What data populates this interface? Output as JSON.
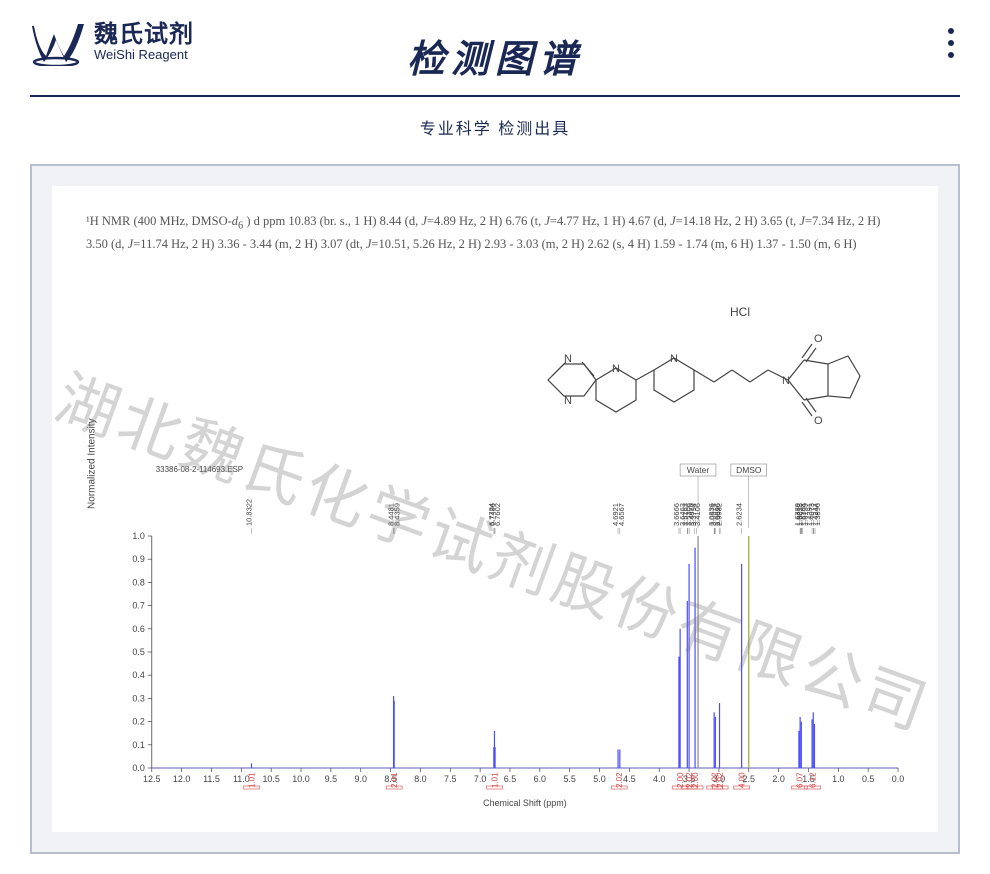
{
  "header": {
    "logo_cn": "魏氏试剂",
    "logo_en": "WeiShi Reagent",
    "title": "检测图谱",
    "subtitle": "专业科学 检测出具"
  },
  "nmr_description": {
    "line1_prefix": "¹H NMR (400 MHz, DMSO-",
    "line1_solvent_i": "d",
    "line1_sub": "6",
    "line1_rest": " ) d ppm 10.83 (br. s., 1 H) 8.44 (d, ",
    "line1_b": "J",
    "line1_c": "=4.89 Hz, 2 H) 6.76 (t, ",
    "line1_d": "J",
    "line1_e": "=4.77 Hz, 1 H) 4.67 (d, ",
    "line1_f": "J",
    "line1_g": "=14.18 Hz, 2 H) 3.65 (t, ",
    "line1_h": "J",
    "line1_i": "=7.34 Hz, 2 H)",
    "line2_a": "3.50 (d, ",
    "line2_b": "J",
    "line2_c": "=11.74 Hz, 2 H) 3.36 - 3.44 (m, 2 H) 3.07 (dt, ",
    "line2_d": "J",
    "line2_e": "=10.51, 5.26 Hz, 2 H) 2.93 - 3.03 (m, 2 H) 2.62 (s, 4 H) 1.59 - 1.74 (m, 6 H) 1.37 - 1.50 (m, 6 H)"
  },
  "structure_labels": {
    "hcl": "HCl",
    "n": "N",
    "o": "O"
  },
  "plot": {
    "esp_label": "33386-08-2-114693.ESP",
    "x_axis_title": "Chemical Shift (ppm)",
    "y_axis_title": "Normalized Intensity",
    "x_min": 0,
    "x_max": 12.5,
    "x_tick_step": 0.5,
    "y_min": 0,
    "y_max": 1.0,
    "y_tick_step": 0.1,
    "background_color": "#ffffff",
    "axis_color": "#444444",
    "peak_color": "#4a4aff",
    "water_line_color": "#888888",
    "dmso_line_color": "#9aa92e",
    "integration_color": "#d94545",
    "solvent_boxes": [
      {
        "label": "Water",
        "ppm": 3.35
      },
      {
        "label": "DMSO",
        "ppm": 2.5
      }
    ],
    "peak_labels": [
      {
        "ppm": 10.83,
        "text": "10.8322"
      },
      {
        "ppm": 8.45,
        "text": "8.4481"
      },
      {
        "ppm": 8.44,
        "text": "8.4359"
      },
      {
        "ppm": 6.77,
        "text": "6.7724"
      },
      {
        "ppm": 6.76,
        "text": "6.7602"
      },
      {
        "ppm": 6.75,
        "text": "6.7496"
      },
      {
        "ppm": 4.69,
        "text": "4.6921"
      },
      {
        "ppm": 4.66,
        "text": "4.6567"
      },
      {
        "ppm": 3.67,
        "text": "3.6666"
      },
      {
        "ppm": 3.65,
        "text": "3.6463"
      },
      {
        "ppm": 3.53,
        "text": "3.5306"
      },
      {
        "ppm": 3.52,
        "text": "3.5163"
      },
      {
        "ppm": 3.49,
        "text": "3.4870"
      },
      {
        "ppm": 3.41,
        "text": "3.4106"
      },
      {
        "ppm": 3.38,
        "text": "3.3794"
      },
      {
        "ppm": 3.08,
        "text": "3.0836"
      },
      {
        "ppm": 3.07,
        "text": "3.0696"
      },
      {
        "ppm": 3.06,
        "text": "3.0574"
      },
      {
        "ppm": 2.99,
        "text": "2.9932"
      },
      {
        "ppm": 2.98,
        "text": "2.9826"
      },
      {
        "ppm": 2.62,
        "text": "2.6234"
      },
      {
        "ppm": 1.64,
        "text": "1.6389"
      },
      {
        "ppm": 1.63,
        "text": "1.6304"
      },
      {
        "ppm": 1.62,
        "text": "1.6212"
      },
      {
        "ppm": 1.61,
        "text": "1.6139"
      },
      {
        "ppm": 1.6,
        "text": "1.6035"
      },
      {
        "ppm": 1.44,
        "text": "1.4391"
      },
      {
        "ppm": 1.42,
        "text": "1.4244"
      },
      {
        "ppm": 1.41,
        "text": "1.4073"
      },
      {
        "ppm": 1.39,
        "text": "1.3896"
      }
    ],
    "integrations": [
      {
        "ppm": 10.83,
        "value": "1.01"
      },
      {
        "ppm": 8.44,
        "value": "2.01"
      },
      {
        "ppm": 6.76,
        "value": "1.01"
      },
      {
        "ppm": 4.67,
        "value": "2.02"
      },
      {
        "ppm": 3.65,
        "value": "2.00"
      },
      {
        "ppm": 3.5,
        "value": "2.02"
      },
      {
        "ppm": 3.4,
        "value": "2.00"
      },
      {
        "ppm": 3.07,
        "value": "2.02"
      },
      {
        "ppm": 2.98,
        "value": "2.02"
      },
      {
        "ppm": 2.62,
        "value": "4.00"
      },
      {
        "ppm": 1.65,
        "value": "6.07"
      },
      {
        "ppm": 1.43,
        "value": "6.12"
      }
    ],
    "peaks": [
      {
        "ppm": 10.83,
        "height": 0.02
      },
      {
        "ppm": 8.45,
        "height": 0.31
      },
      {
        "ppm": 8.44,
        "height": 0.29
      },
      {
        "ppm": 6.77,
        "height": 0.09
      },
      {
        "ppm": 6.76,
        "height": 0.16
      },
      {
        "ppm": 6.75,
        "height": 0.09
      },
      {
        "ppm": 4.69,
        "height": 0.08
      },
      {
        "ppm": 4.66,
        "height": 0.08
      },
      {
        "ppm": 3.67,
        "height": 0.48
      },
      {
        "ppm": 3.65,
        "height": 0.6
      },
      {
        "ppm": 3.53,
        "height": 0.72
      },
      {
        "ppm": 3.5,
        "height": 0.88
      },
      {
        "ppm": 3.4,
        "height": 0.95
      },
      {
        "ppm": 3.35,
        "height": 1.0
      },
      {
        "ppm": 3.08,
        "height": 0.24
      },
      {
        "ppm": 3.06,
        "height": 0.22
      },
      {
        "ppm": 2.99,
        "height": 0.28
      },
      {
        "ppm": 2.62,
        "height": 0.88
      },
      {
        "ppm": 2.5,
        "height": 1.0
      },
      {
        "ppm": 1.66,
        "height": 0.16
      },
      {
        "ppm": 1.64,
        "height": 0.22
      },
      {
        "ppm": 1.62,
        "height": 0.2
      },
      {
        "ppm": 1.44,
        "height": 0.21
      },
      {
        "ppm": 1.42,
        "height": 0.24
      },
      {
        "ppm": 1.4,
        "height": 0.19
      }
    ]
  },
  "watermark": "湖北魏氏化学试剂股份有限公司"
}
